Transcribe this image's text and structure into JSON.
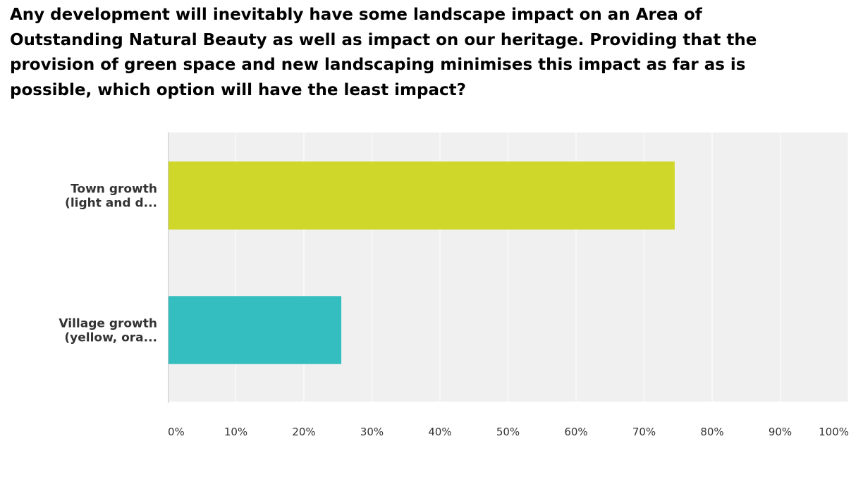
{
  "question": {
    "title": "Any development will inevitably have some landscape impact on an Area of Outstanding Natural Beauty as well as impact on our heritage. Providing that the provision of green space and new landscaping minimises this impact as far as is possible, which option will have the least impact?"
  },
  "chart_data": {
    "type": "bar",
    "orientation": "horizontal",
    "title": "Any development will inevitably have some landscape impact on an Area of Outstanding Natural Beauty as well as impact on our heritage. Providing that the provision of green space and new landscaping minimises this impact as far as is possible, which option will have the least impact?",
    "categories": [
      [
        "Town growth",
        "(light and d..."
      ],
      [
        "Village growth",
        "(yellow, ora..."
      ]
    ],
    "values": [
      74.5,
      25.5
    ],
    "colors": [
      "#cfd72a",
      "#34bec0"
    ],
    "xticks": [
      "0%",
      "10%",
      "20%",
      "30%",
      "40%",
      "50%",
      "60%",
      "70%",
      "80%",
      "90%",
      "100%"
    ],
    "xlim": [
      0,
      100
    ],
    "unit": "%",
    "grid": true,
    "legend": "none",
    "plot_background": "#f0f0f0",
    "gridline_color": "#ffffff",
    "axis_color": "#c8c8c8"
  }
}
